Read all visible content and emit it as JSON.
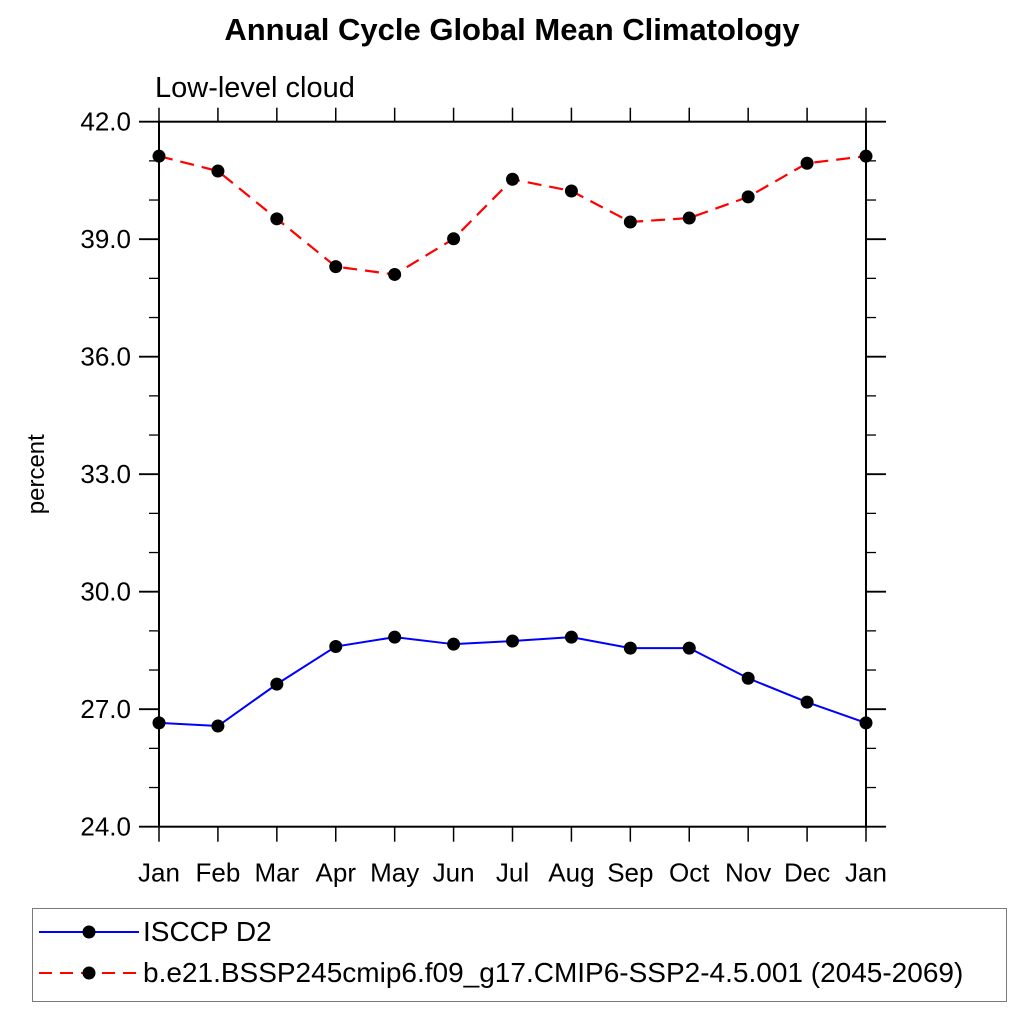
{
  "page": {
    "background": "#ffffff"
  },
  "chart_data": {
    "type": "line",
    "title": "Annual Cycle Global Mean Climatology",
    "subtitle": "Low-level cloud",
    "ylabel": "percent",
    "xlabel": "",
    "x_categories": [
      "Jan",
      "Feb",
      "Mar",
      "Apr",
      "May",
      "Jun",
      "Jul",
      "Aug",
      "Sep",
      "Oct",
      "Nov",
      "Dec",
      "Jan"
    ],
    "y_axis": {
      "min": 24.0,
      "max": 42.0,
      "major_step": 3.0,
      "minor_step": 1.0,
      "major_tick_labels": [
        "24.0",
        "27.0",
        "30.0",
        "33.0",
        "36.0",
        "39.0",
        "42.0"
      ]
    },
    "grid": false,
    "legend_position": "bottom-left-box",
    "axis_color": "#000000",
    "series": [
      {
        "name": "ISCCP D2",
        "color": "#0000ff",
        "line_style": "solid",
        "marker": "filled-circle",
        "marker_color": "#000000",
        "values": [
          26.65,
          26.57,
          27.64,
          28.6,
          28.84,
          28.66,
          28.74,
          28.84,
          28.56,
          28.56,
          27.79,
          27.18,
          26.65
        ]
      },
      {
        "name": "b.e21.BSSP245cmip6.f09_g17.CMIP6-SSP2-4.5.001 (2045-2069)",
        "color": "#ff0000",
        "line_style": "dashed",
        "marker": "filled-circle",
        "marker_color": "#000000",
        "values": [
          41.12,
          40.74,
          39.52,
          38.3,
          38.1,
          39.01,
          40.53,
          40.23,
          39.44,
          39.54,
          40.08,
          40.94,
          41.12
        ]
      }
    ]
  }
}
